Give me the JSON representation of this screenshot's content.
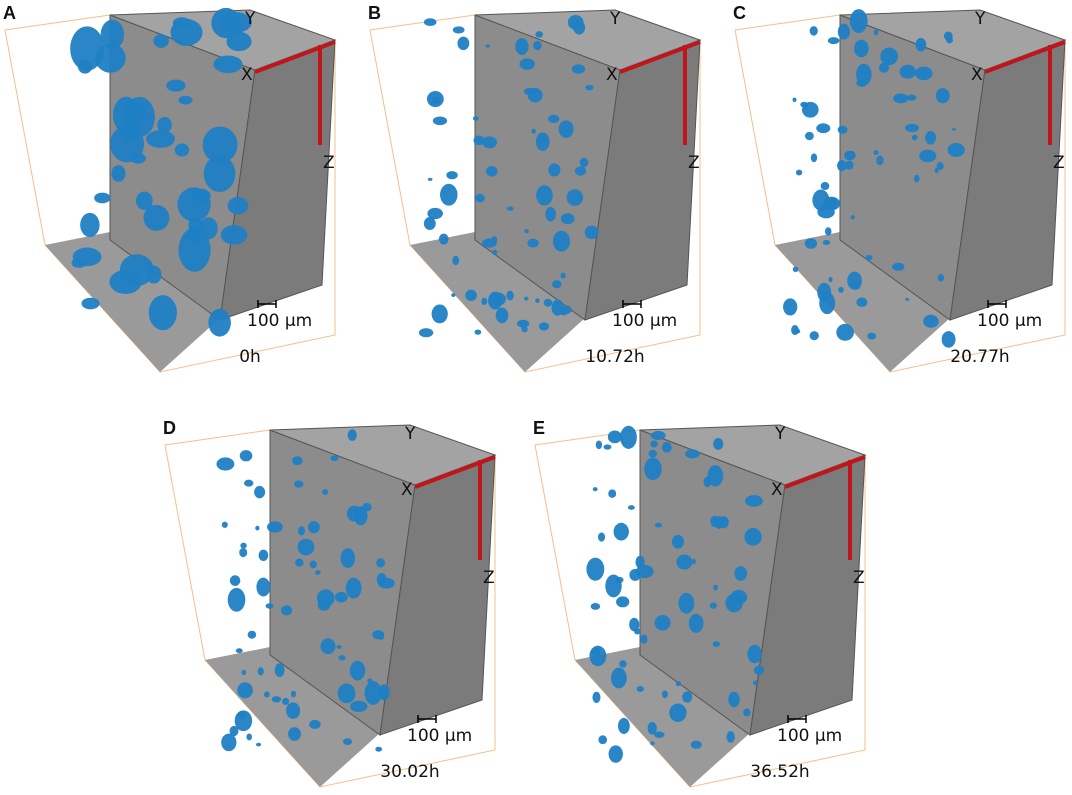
{
  "panels": [
    {
      "label": "A",
      "time": "0h",
      "axis_labels": [
        "Y",
        "X",
        "Z"
      ],
      "scale_bar": "100 μm"
    },
    {
      "label": "B",
      "time": "10.72h",
      "axis_labels": [
        "Y",
        "X",
        "Z"
      ],
      "scale_bar": "100 μm"
    },
    {
      "label": "C",
      "time": "20.77h",
      "axis_labels": [
        "Y",
        "X",
        "Z"
      ],
      "scale_bar": "100 μm"
    },
    {
      "label": "D",
      "time": "30.02h",
      "axis_labels": [
        "Y",
        "X",
        "Z"
      ],
      "scale_bar": "100 μm"
    },
    {
      "label": "E",
      "time": "36.52h",
      "axis_labels": [
        "Y",
        "X",
        "Z"
      ],
      "scale_bar": "100 μm"
    }
  ]
}
